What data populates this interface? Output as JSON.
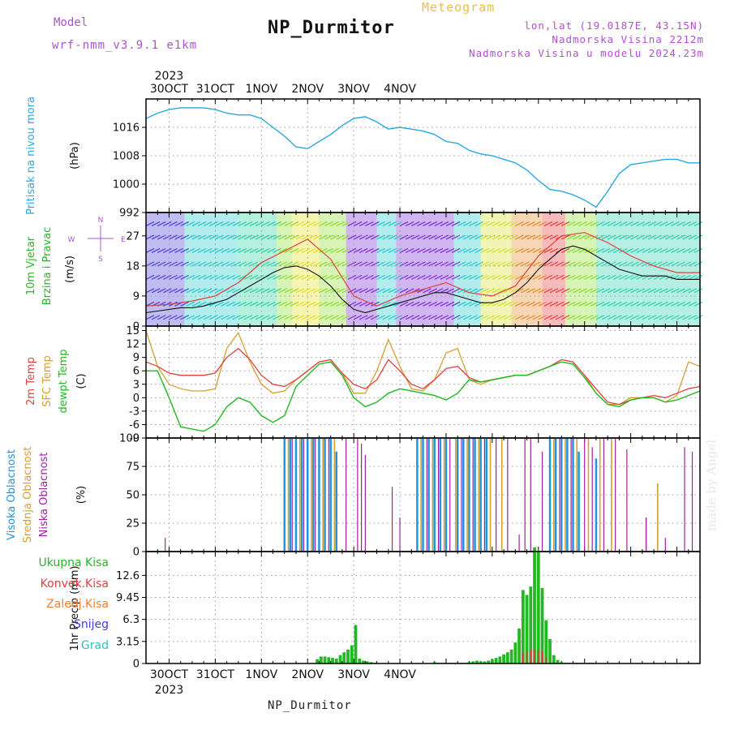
{
  "header": {
    "title": "NP_Durmitor",
    "subtitle": "Meteogram",
    "model_label": "Model",
    "model_value": "wrf-nmm_v3.9.1 e1km",
    "info_lines": [
      "lon,lat (19.0187E, 43.15N)",
      "Nadmorska Visina 2212m",
      "Nadmorska Visina u modelu 2024.23m"
    ]
  },
  "footer": {
    "station": "NP_Durmitor",
    "credit": "made by Angel"
  },
  "colors": {
    "pressure": "#2aa8e0",
    "wind_speed": "#111111",
    "gust": "#e04040",
    "temp_2m": "#e04040",
    "temp_sfc": "#d4a030",
    "dewpoint": "#22b822",
    "cloud_high": "#1f95e0",
    "cloud_mid": "#d4a030",
    "cloud_low": "#a020a0",
    "precip_total": "#22b822",
    "precip_conv": "#e04040"
  },
  "chart_data": [
    {
      "type": "line",
      "title": "",
      "ylabel": "Pritisak na nivou mora",
      "unit": "(hPa)",
      "xticks": [
        "30OCT",
        "31OCT",
        "1NOV",
        "2NOV",
        "3NOV",
        "4NOV"
      ],
      "year": "2023",
      "x_unit": "hours from 29 Oct 2023 12:00 UTC",
      "ylim": [
        992,
        1024
      ],
      "yticks": [
        992,
        1000,
        1008,
        1016
      ],
      "grid": true,
      "series": [
        {
          "name": "",
          "x": [
            0,
            6,
            12,
            18,
            24,
            30,
            36,
            42,
            48,
            54,
            60,
            66,
            72,
            78,
            84,
            90,
            96,
            102,
            108,
            114,
            120,
            126,
            132,
            138,
            144,
            150,
            156,
            162,
            168,
            174,
            180,
            186,
            192,
            198,
            204,
            210,
            216,
            222,
            228,
            234,
            240,
            246,
            252,
            258,
            264,
            270,
            276,
            282,
            288
          ],
          "values": [
            1018.5,
            1020,
            1021,
            1021.5,
            1021.5,
            1021.5,
            1021,
            1020,
            1019.5,
            1019.5,
            1018.5,
            1016,
            1013.5,
            1010.5,
            1010,
            1012,
            1014,
            1016.5,
            1018.5,
            1019,
            1017.5,
            1015.5,
            1016,
            1015.5,
            1015,
            1014,
            1012,
            1011.5,
            1009.5,
            1008.5,
            1008,
            1007,
            1006,
            1004,
            1001,
            998.5,
            998,
            997,
            995.5,
            993.5,
            998,
            1003,
            1005.5,
            1006,
            1006.5,
            1007,
            1007,
            1006,
            1006
          ]
        }
      ]
    },
    {
      "type": "line",
      "title": "",
      "ylabel": "10m Vjetar Brzina i Pravac",
      "unit": "(m/s)",
      "compass": [
        "N",
        "E",
        "S",
        "W"
      ],
      "ylim": [
        0,
        34
      ],
      "yticks": [
        0,
        9,
        18,
        27
      ],
      "grid": true,
      "series": [
        {
          "name": "",
          "x": [
            0,
            6,
            12,
            18,
            24,
            30,
            36,
            42,
            48,
            54,
            60,
            66,
            72,
            78,
            84,
            90,
            96,
            102,
            108,
            114,
            120,
            126,
            132,
            138,
            144,
            150,
            156,
            162,
            168,
            174,
            180,
            186,
            192,
            198,
            204,
            210,
            216,
            222,
            228,
            234,
            240,
            246,
            252,
            258,
            264,
            270,
            276,
            282,
            288
          ],
          "values": [
            4,
            4.5,
            5,
            5.5,
            5.5,
            6,
            7,
            8,
            10,
            12,
            14,
            16,
            17.5,
            18,
            17,
            15,
            12,
            8,
            5,
            4,
            5,
            6,
            7,
            8,
            9,
            10,
            10,
            9,
            8,
            7,
            7,
            8,
            10,
            13,
            17,
            20,
            23,
            24,
            23,
            21,
            19,
            17,
            16,
            15,
            15,
            15,
            14,
            14,
            14
          ]
        },
        {
          "name": "",
          "x": [
            0,
            12,
            24,
            36,
            48,
            60,
            72,
            84,
            96,
            108,
            120,
            132,
            144,
            156,
            168,
            180,
            192,
            204,
            216,
            228,
            240,
            252,
            264,
            276,
            288
          ],
          "values": [
            6,
            6.5,
            7.5,
            9,
            13,
            19,
            22.5,
            26,
            20,
            9,
            6,
            9,
            11,
            13,
            10,
            9,
            12,
            21,
            27,
            28,
            25,
            21,
            18,
            16,
            16
          ]
        }
      ]
    },
    {
      "type": "line",
      "title": "",
      "ylabel": [
        "2m Temp",
        "SFC Temp",
        "dewpt Temp"
      ],
      "unit": "(C)",
      "ylim": [
        -9,
        16
      ],
      "yticks": [
        -9,
        -6,
        -3,
        0,
        3,
        6,
        9,
        12,
        15
      ],
      "grid": true,
      "series": [
        {
          "name": "2m Temp",
          "x": [
            0,
            6,
            12,
            18,
            24,
            30,
            36,
            42,
            48,
            54,
            60,
            66,
            72,
            78,
            84,
            90,
            96,
            102,
            108,
            114,
            120,
            126,
            132,
            138,
            144,
            150,
            156,
            162,
            168,
            174,
            180,
            186,
            192,
            198,
            204,
            210,
            216,
            222,
            228,
            234,
            240,
            246,
            252,
            258,
            264,
            270,
            276,
            282,
            288
          ],
          "values": [
            8,
            7,
            5.5,
            5,
            5,
            5,
            5.5,
            9,
            11,
            8.5,
            5,
            3,
            2.5,
            4,
            6,
            8,
            8.5,
            5.5,
            3,
            2,
            4,
            8.5,
            6,
            3,
            2,
            4,
            6.5,
            7,
            4.5,
            3.5,
            4,
            4.5,
            5,
            5,
            6,
            7,
            8.5,
            8,
            5,
            2,
            -1,
            -1.5,
            -0.5,
            0,
            0.5,
            0,
            1,
            2,
            2.5
          ]
        },
        {
          "name": "SFC Temp",
          "x": [
            0,
            6,
            12,
            18,
            24,
            30,
            36,
            42,
            48,
            54,
            60,
            66,
            72,
            78,
            84,
            90,
            96,
            102,
            108,
            114,
            120,
            126,
            132,
            138,
            144,
            150,
            156,
            162,
            168,
            174,
            180,
            186,
            192,
            198,
            204,
            210,
            216,
            222,
            228,
            234,
            240,
            246,
            252,
            258,
            264,
            270,
            276,
            282,
            288
          ],
          "values": [
            15,
            7,
            3,
            2,
            1.5,
            1.5,
            2,
            11,
            14.5,
            8,
            3,
            1,
            1.5,
            4,
            6,
            8,
            8.5,
            5.5,
            1,
            1,
            6,
            13,
            7,
            2,
            1.5,
            4,
            10,
            11,
            4,
            3,
            4,
            4.5,
            5,
            5,
            6,
            7,
            8.5,
            8,
            5,
            1,
            -1.5,
            -1.5,
            0,
            0,
            0,
            -1,
            0.5,
            8,
            7
          ]
        },
        {
          "name": "dewpt Temp",
          "x": [
            0,
            6,
            12,
            18,
            24,
            30,
            36,
            42,
            48,
            54,
            60,
            66,
            72,
            78,
            84,
            90,
            96,
            102,
            108,
            114,
            120,
            126,
            132,
            138,
            144,
            150,
            156,
            162,
            168,
            174,
            180,
            186,
            192,
            198,
            204,
            210,
            216,
            222,
            228,
            234,
            240,
            246,
            252,
            258,
            264,
            270,
            276,
            282,
            288
          ],
          "values": [
            6,
            6,
            0,
            -6.5,
            -7,
            -7.5,
            -6,
            -2,
            0,
            -1,
            -4,
            -5.5,
            -4,
            2.5,
            5,
            7.5,
            8,
            5,
            0,
            -2,
            -1,
            1,
            2,
            1.5,
            1,
            0.5,
            -0.5,
            1,
            4,
            3.5,
            4,
            4.5,
            5,
            5,
            6,
            7,
            8,
            7.5,
            4.5,
            1,
            -1.5,
            -2,
            -0.5,
            0,
            0,
            -1,
            -0.5,
            0.5,
            1.5
          ]
        }
      ]
    },
    {
      "type": "bar",
      "title": "",
      "ylabel": [
        "Visoka Oblacnost",
        "Srednja Oblacnost",
        "Niska Oblacnost"
      ],
      "unit": "(%)",
      "ylim": [
        0,
        100
      ],
      "yticks": [
        0,
        25,
        50,
        75,
        100
      ],
      "grid": true,
      "series": [
        {
          "name": "Visoka Oblacnost",
          "x": [
            72,
            75,
            78,
            81,
            84,
            87,
            90,
            93,
            96,
            99,
            141,
            144,
            147,
            150,
            153,
            156,
            162,
            165,
            168,
            171,
            174,
            177,
            210,
            213,
            216,
            219,
            222,
            225,
            234
          ],
          "values": [
            100,
            100,
            100,
            100,
            100,
            100,
            100,
            100,
            100,
            88,
            100,
            100,
            100,
            100,
            100,
            100,
            100,
            100,
            100,
            100,
            100,
            100,
            100,
            100,
            100,
            100,
            100,
            88,
            82
          ]
        },
        {
          "name": "Srednja Oblacnost",
          "x": [
            74,
            80,
            86,
            92,
            98,
            143,
            149,
            155,
            161,
            167,
            173,
            179,
            185,
            212,
            218,
            224,
            230,
            236,
            242,
            260,
            266
          ],
          "values": [
            100,
            100,
            100,
            100,
            100,
            100,
            100,
            100,
            100,
            100,
            100,
            100,
            100,
            100,
            100,
            100,
            100,
            100,
            100,
            30,
            60
          ]
        },
        {
          "name": "Niska Oblacnost",
          "x": [
            10,
            76,
            82,
            88,
            95,
            104,
            110,
            112,
            114,
            128,
            132,
            146,
            152,
            158,
            164,
            170,
            176,
            182,
            188,
            194,
            197,
            200,
            206,
            215,
            221,
            228,
            232,
            238,
            244,
            250,
            260,
            270,
            280,
            284
          ],
          "values": [
            12,
            100,
            100,
            100,
            100,
            100,
            100,
            95,
            85,
            57,
            30,
            100,
            100,
            100,
            100,
            100,
            100,
            100,
            100,
            15,
            100,
            100,
            88,
            100,
            100,
            100,
            92,
            100,
            100,
            90,
            30,
            12,
            92,
            88
          ]
        }
      ]
    },
    {
      "type": "bar",
      "title": "",
      "ylabel": "1hr Precip",
      "unit": "(mm)",
      "legend": [
        "Ukupna Kisa",
        "Konvek.Kisa",
        "Zaledj.Kisa",
        "Snijeg",
        "Grad"
      ],
      "ylim": [
        0,
        16
      ],
      "yticks": [
        0,
        3.15,
        6.3,
        9.45,
        12.6
      ],
      "grid": true,
      "series": [
        {
          "name": "Ukupna Kisa",
          "x": [
            89,
            91,
            93,
            95,
            97,
            99,
            101,
            103,
            105,
            107,
            109,
            111,
            113,
            115,
            117,
            119,
            150,
            152,
            154,
            156,
            158,
            160,
            162,
            164,
            166,
            168,
            170,
            172,
            174,
            176,
            178,
            180,
            182,
            184,
            186,
            188,
            190,
            192,
            194,
            196,
            198,
            200,
            202,
            204,
            206,
            208,
            210,
            212,
            214,
            216,
            218,
            220,
            222,
            224,
            226,
            228,
            230,
            232
          ],
          "values": [
            0.6,
            1.0,
            1.0,
            0.9,
            0.8,
            0.7,
            1.2,
            1.6,
            2.0,
            2.6,
            5.5,
            0.7,
            0.4,
            0.3,
            0.2,
            0.1,
            0.2,
            0.1,
            0.1,
            0.1,
            0.1,
            0.1,
            0.1,
            0.1,
            0.1,
            0.2,
            0.3,
            0.4,
            0.3,
            0.3,
            0.4,
            0.6,
            0.8,
            1.0,
            1.3,
            1.6,
            2.0,
            3.0,
            5.0,
            10.5,
            9.8,
            11.0,
            16.6,
            16.0,
            10.8,
            6.2,
            3.5,
            1.2,
            0.5,
            0.2,
            0.1,
            0.1,
            0.1,
            0.1,
            0.1,
            0.1,
            0.1,
            0.1
          ]
        },
        {
          "name": "Konvek.Kisa",
          "x": [
            196,
            198,
            200,
            202,
            204,
            206,
            208
          ],
          "values": [
            1.5,
            1.8,
            2.0,
            2.0,
            2.0,
            1.8,
            1.0
          ]
        }
      ]
    }
  ]
}
